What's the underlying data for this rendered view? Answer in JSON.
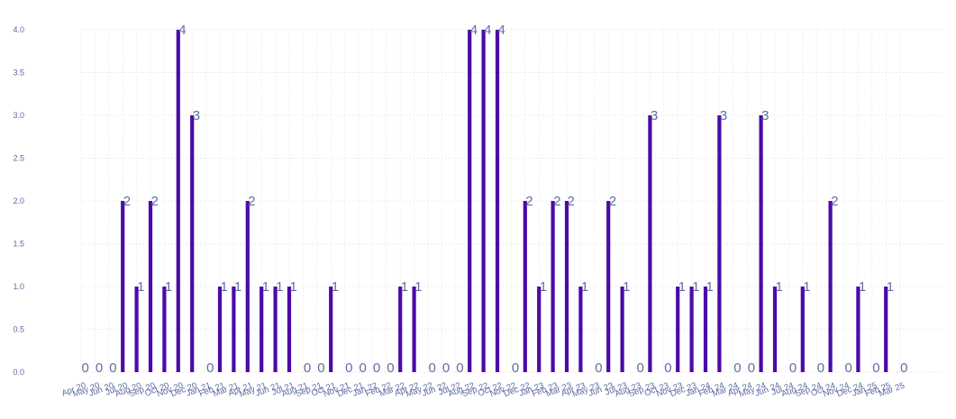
{
  "chart_data": {
    "type": "bar",
    "title": "",
    "xlabel": "",
    "ylabel": "",
    "ylim": [
      0,
      4.0
    ],
    "yticks": [
      "0.0",
      "0.5",
      "1.0",
      "1.5",
      "2.0",
      "2.5",
      "3.0",
      "3.5",
      "4.0"
    ],
    "grid": true,
    "bar_color": "#4b0aa7",
    "categories": [
      "Apr 20",
      "May 20",
      "Jun 20",
      "Jul 20",
      "Aug 20",
      "Sep 20",
      "Oct 20",
      "Nov 20",
      "Dec 20",
      "Jan 21",
      "Feb 21",
      "Mar 21",
      "Apr 21",
      "May 21",
      "Jun 21",
      "Jul 21",
      "Aug 21",
      "Sep 21",
      "Oct 21",
      "Nov 21",
      "Dec 21",
      "Jan 22",
      "Feb 22",
      "Mar 22",
      "Apr 22",
      "May 22",
      "Jun 22",
      "Jul 22",
      "Aug 22",
      "Sep 22",
      "Oct 22",
      "Nov 22",
      "Dec 22",
      "Jan 23",
      "Feb 23",
      "Mar 23",
      "Apr 23",
      "May 23",
      "Jun 23",
      "Jul 23",
      "Aug 23",
      "Sep 23",
      "Oct 23",
      "Nov 23",
      "Dec 23",
      "Jan 24",
      "Feb 24",
      "Mar 24",
      "Apr 24",
      "May 24",
      "Jun 24",
      "Jul 24",
      "Aug 24",
      "Sep 24",
      "Oct 24",
      "Nov 24",
      "Dec 24",
      "Jan 25",
      "Feb 25",
      "Mar 25"
    ],
    "values": [
      0,
      0,
      0,
      2,
      1,
      2,
      1,
      4,
      3,
      0,
      1,
      1,
      2,
      1,
      1,
      1,
      0,
      0,
      1,
      0,
      0,
      0,
      0,
      1,
      1,
      0,
      0,
      0,
      4,
      4,
      4,
      0,
      2,
      1,
      2,
      2,
      1,
      0,
      2,
      1,
      0,
      3,
      0,
      1,
      1,
      1,
      3,
      0,
      0,
      3,
      1,
      0,
      1,
      0,
      2,
      0,
      1,
      0,
      1,
      0
    ]
  }
}
